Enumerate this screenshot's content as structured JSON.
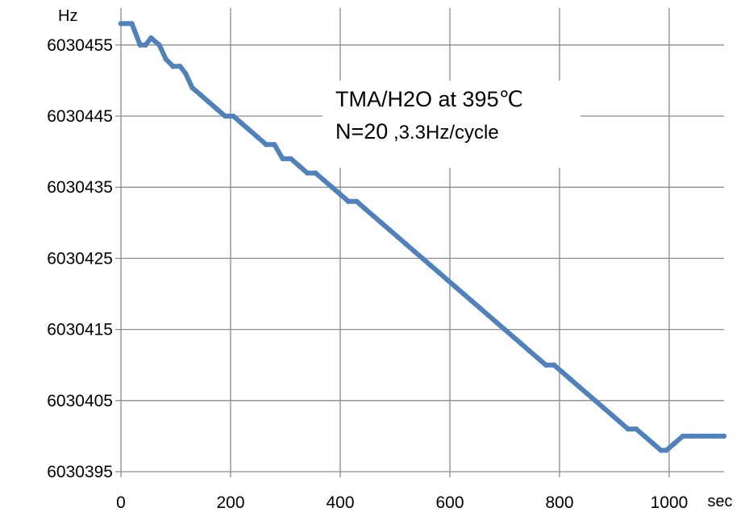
{
  "chart_data": {
    "type": "scatter",
    "y_unit": "Hz",
    "x_unit": "sec",
    "xlim": [
      0,
      1100
    ],
    "ylim": [
      6030395,
      6030460
    ],
    "x_ticks": [
      "0",
      "200",
      "400",
      "600",
      "800",
      "1000"
    ],
    "y_ticks": [
      "6030395",
      "6030405",
      "6030415",
      "6030425",
      "6030435",
      "6030445",
      "6030455"
    ],
    "grid": true,
    "annotation": {
      "line1": "TMA/H2O at 395℃",
      "line2_main": "N=20",
      "line2_rest": "  ,3.3Hz/cycle"
    },
    "series": [
      {
        "color": "#4f81bd",
        "points": [
          [
            0,
            6030458
          ],
          [
            20,
            6030458
          ],
          [
            25,
            6030457
          ],
          [
            35,
            6030455
          ],
          [
            45,
            6030455
          ],
          [
            55,
            6030456
          ],
          [
            70,
            6030455
          ],
          [
            82,
            6030453
          ],
          [
            95,
            6030452
          ],
          [
            108,
            6030452
          ],
          [
            118,
            6030451
          ],
          [
            130,
            6030449
          ],
          [
            145,
            6030448
          ],
          [
            160,
            6030447
          ],
          [
            175,
            6030446
          ],
          [
            190,
            6030445
          ],
          [
            205,
            6030445
          ],
          [
            220,
            6030444
          ],
          [
            235,
            6030443
          ],
          [
            250,
            6030442
          ],
          [
            265,
            6030441
          ],
          [
            280,
            6030441
          ],
          [
            295,
            6030439
          ],
          [
            310,
            6030439
          ],
          [
            325,
            6030438
          ],
          [
            340,
            6030437
          ],
          [
            355,
            6030437
          ],
          [
            370,
            6030436
          ],
          [
            385,
            6030435
          ],
          [
            400,
            6030434
          ],
          [
            415,
            6030433
          ],
          [
            430,
            6030433
          ],
          [
            445,
            6030432
          ],
          [
            460,
            6030431
          ],
          [
            475,
            6030430
          ],
          [
            490,
            6030429
          ],
          [
            505,
            6030428
          ],
          [
            520,
            6030427
          ],
          [
            535,
            6030426
          ],
          [
            550,
            6030425
          ],
          [
            565,
            6030424
          ],
          [
            580,
            6030423
          ],
          [
            595,
            6030422
          ],
          [
            610,
            6030421
          ],
          [
            625,
            6030420
          ],
          [
            640,
            6030419
          ],
          [
            655,
            6030418
          ],
          [
            670,
            6030417
          ],
          [
            685,
            6030416
          ],
          [
            700,
            6030415
          ],
          [
            715,
            6030414
          ],
          [
            730,
            6030413
          ],
          [
            745,
            6030412
          ],
          [
            760,
            6030411
          ],
          [
            775,
            6030410
          ],
          [
            790,
            6030410
          ],
          [
            805,
            6030409
          ],
          [
            820,
            6030408
          ],
          [
            835,
            6030407
          ],
          [
            850,
            6030406
          ],
          [
            865,
            6030405
          ],
          [
            880,
            6030404
          ],
          [
            895,
            6030403
          ],
          [
            910,
            6030402
          ],
          [
            925,
            6030401
          ],
          [
            940,
            6030401
          ],
          [
            955,
            6030400
          ],
          [
            970,
            6030399
          ],
          [
            985,
            6030398
          ],
          [
            995,
            6030398
          ],
          [
            1010,
            6030399
          ],
          [
            1025,
            6030400
          ],
          [
            1040,
            6030400
          ],
          [
            1060,
            6030400
          ],
          [
            1080,
            6030400
          ],
          [
            1100,
            6030400
          ]
        ]
      }
    ]
  }
}
